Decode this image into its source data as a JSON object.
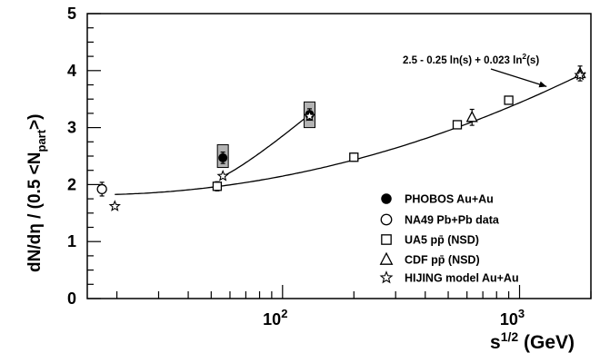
{
  "chart_data": {
    "type": "scatter",
    "x_scale": "log",
    "xlim": [
      15,
      2000
    ],
    "ylim": [
      0,
      5
    ],
    "y_ticks": [
      "0",
      "1",
      "2",
      "3",
      "4",
      "5"
    ],
    "x_tick_major": [
      {
        "value": 100,
        "base": "10",
        "exp": "2"
      },
      {
        "value": 1000,
        "base": "10",
        "exp": "3"
      }
    ],
    "x_title": {
      "main": "s",
      "sup": "1/2",
      "unit": " (GeV)"
    },
    "y_title": {
      "pre": "dN/dη / (0.5 <N",
      "sub": "part",
      "post": ">)"
    },
    "grid": false,
    "legend_position": "bottom-right",
    "series": [
      {
        "name": "PHOBOS Au+Au",
        "marker": "filled-circle",
        "points": [
          {
            "x": 56,
            "y": 2.47,
            "err": 0.1,
            "syst_lo": 2.3,
            "syst_hi": 2.7
          },
          {
            "x": 130,
            "y": 3.23,
            "err": 0.1,
            "syst_lo": 3.0,
            "syst_hi": 3.45
          }
        ]
      },
      {
        "name": "NA49 Pb+Pb data",
        "marker": "open-circle",
        "points": [
          {
            "x": 17.3,
            "y": 1.92,
            "err": 0.12
          }
        ]
      },
      {
        "name": "UA5 pp̄ (NSD)",
        "marker": "open-square",
        "points": [
          {
            "x": 53,
            "y": 1.97,
            "err": 0.08
          },
          {
            "x": 200,
            "y": 2.48,
            "err": 0.07
          },
          {
            "x": 546,
            "y": 3.05,
            "err": 0.06
          },
          {
            "x": 900,
            "y": 3.48,
            "err": 0.06
          }
        ]
      },
      {
        "name": "CDF pp̄ (NSD)",
        "marker": "open-triangle",
        "points": [
          {
            "x": 630,
            "y": 3.18,
            "err": 0.14
          },
          {
            "x": 1800,
            "y": 3.95,
            "err": 0.13
          }
        ]
      },
      {
        "name": "HIJING model Au+Au",
        "marker": "open-star",
        "points": [
          {
            "x": 19.6,
            "y": 1.62
          },
          {
            "x": 56,
            "y": 2.15
          },
          {
            "x": 130,
            "y": 3.2
          },
          {
            "x": 1800,
            "y": 3.92
          }
        ]
      }
    ],
    "curves": [
      {
        "formula": "2.5 - 0.25 ln(s) + 0.023 ln2(s)",
        "x_range": [
          19.6,
          1900
        ]
      },
      {
        "x_range": [
          56,
          130
        ]
      }
    ],
    "annotation": {
      "text": "2.5 - 0.25 ln(s) + 0.023 ln",
      "sup": "2",
      "tail": "(s)",
      "arrow_to": {
        "x": 1300,
        "y": 3.72
      }
    }
  }
}
